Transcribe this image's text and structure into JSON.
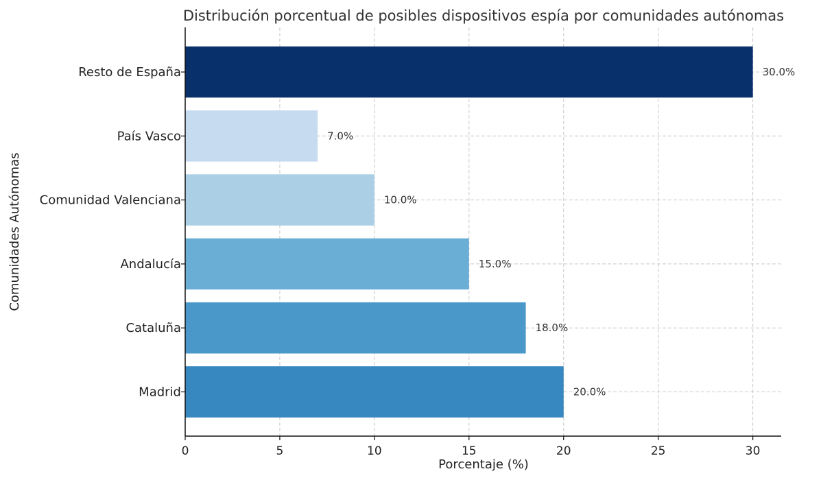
{
  "chart_data": {
    "type": "bar",
    "orientation": "horizontal",
    "title": "Distribución porcentual de posibles dispositivos espía por comunidades autónomas",
    "xlabel": "Porcentaje (%)",
    "ylabel": "Comunidades Autónomas",
    "xlim": [
      0,
      31.5
    ],
    "xticks": [
      0,
      5,
      10,
      15,
      20,
      25,
      30
    ],
    "grid": true,
    "categories": [
      "Madrid",
      "Cataluña",
      "Andalucía",
      "Comunidad Valenciana",
      "País Vasco",
      "Resto de España"
    ],
    "values": [
      20.0,
      18.0,
      15.0,
      10.0,
      7.0,
      30.0
    ],
    "value_labels": [
      "20.0%",
      "18.0%",
      "15.0%",
      "10.0%",
      "7.0%",
      "30.0%"
    ],
    "colors": [
      "#3787c0",
      "#4a98c9",
      "#6aaed6",
      "#abd0e6",
      "#c6dbef",
      "#08306b"
    ]
  }
}
